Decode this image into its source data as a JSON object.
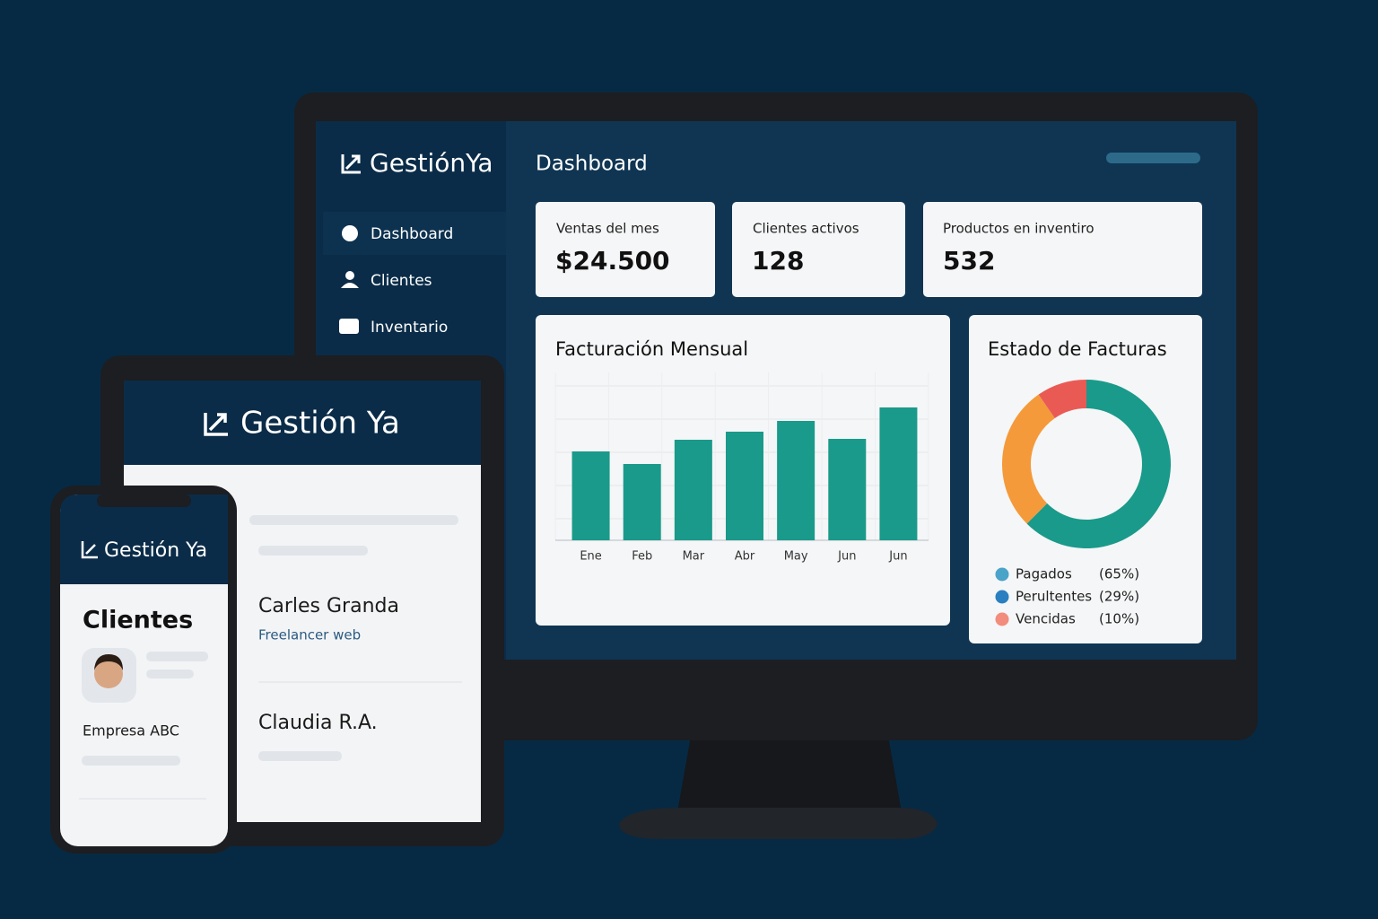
{
  "desktop": {
    "logo": "GestiónYa",
    "page_title": "Dashboard",
    "menu": [
      "Dashboard",
      "Clientes",
      "Inventario"
    ],
    "cards": [
      {
        "label": "Ventas del mes",
        "value": "$24.500"
      },
      {
        "label": "Clientes activos",
        "value": 128
      },
      {
        "label": "Productos en inventiro",
        "value": 532
      }
    ]
  },
  "tablet": {
    "logo": "Gestión Ya",
    "contacts": [
      {
        "name": "Carles Granda",
        "role": "Freelancer web"
      },
      {
        "name": "Claudia R.A."
      }
    ]
  },
  "phone": {
    "logo": "Gestión Ya",
    "title": "Clientes",
    "company": "Empresa ABC"
  },
  "chart_data": [
    {
      "type": "bar",
      "title": "Facturación Mensual",
      "categories": [
        "Ene",
        "Feb",
        "Mar",
        "Abr",
        "May",
        "Jun",
        "Jun"
      ],
      "values": [
        99,
        85,
        112,
        121,
        133,
        113,
        148
      ],
      "color": "#1a9a8a",
      "ylim": [
        0,
        172
      ],
      "grid": true
    },
    {
      "type": "pie",
      "title": "Estado de Facturas",
      "categories": [
        "Pagados",
        "Perultentes",
        "Vencidas"
      ],
      "values": [
        65,
        29,
        10
      ],
      "value_labels": [
        "(65%)",
        "(29%)",
        "(10%)"
      ],
      "colors": [
        "#1a9a8a",
        "#f49a3a",
        "#ea5a55"
      ],
      "legend_colors": [
        "#4aa3c8",
        "#2a7fc0",
        "#f28c7c"
      ]
    }
  ]
}
